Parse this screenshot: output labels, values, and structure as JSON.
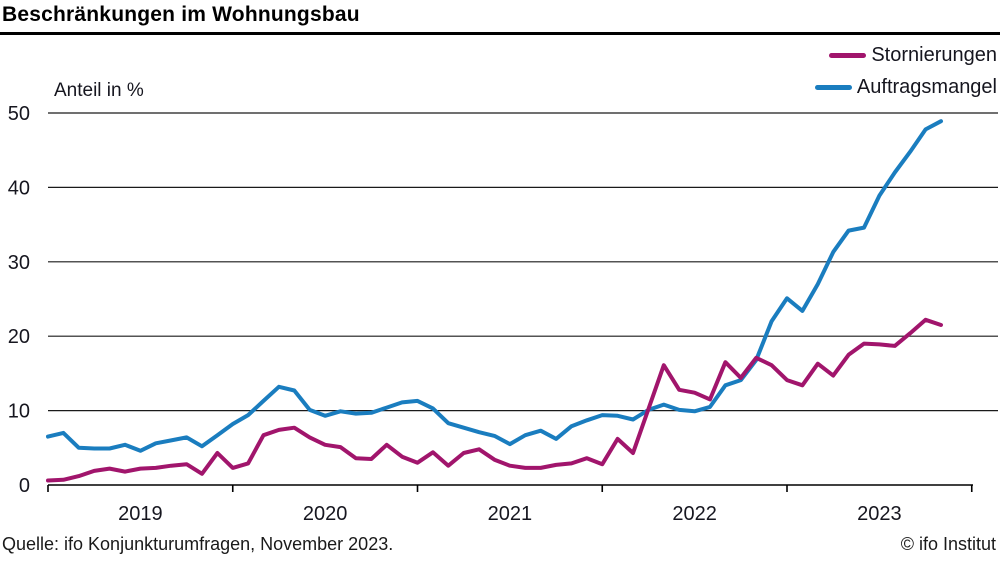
{
  "title": "Beschränkungen im Wohnungsbau",
  "footer": {
    "source": "Quelle: ifo Konjunkturumfragen, November 2023.",
    "copyright": "© ifo Institut"
  },
  "colors": {
    "stornierungen": "#a1156c",
    "auftragsmangel": "#1a7dbf",
    "text": "#16161f",
    "grid": "#1a1a1a"
  },
  "chart_data": {
    "type": "line",
    "title": "Beschränkungen im Wohnungsbau",
    "ylabel": "Anteil in %",
    "ylim": [
      0,
      50
    ],
    "yticks": [
      0,
      10,
      20,
      30,
      40,
      50
    ],
    "grid": true,
    "legend_position": "top-right",
    "xtick_year_labels": [
      "2019",
      "2020",
      "2021",
      "2022",
      "2023"
    ],
    "x": [
      "2019-01",
      "2019-02",
      "2019-03",
      "2019-04",
      "2019-05",
      "2019-06",
      "2019-07",
      "2019-08",
      "2019-09",
      "2019-10",
      "2019-11",
      "2019-12",
      "2020-01",
      "2020-02",
      "2020-03",
      "2020-04",
      "2020-05",
      "2020-06",
      "2020-07",
      "2020-08",
      "2020-09",
      "2020-10",
      "2020-11",
      "2020-12",
      "2021-01",
      "2021-02",
      "2021-03",
      "2021-04",
      "2021-05",
      "2021-06",
      "2021-07",
      "2021-08",
      "2021-09",
      "2021-10",
      "2021-11",
      "2021-12",
      "2022-01",
      "2022-02",
      "2022-03",
      "2022-04",
      "2022-05",
      "2022-06",
      "2022-07",
      "2022-08",
      "2022-09",
      "2022-10",
      "2022-11",
      "2022-12",
      "2023-01",
      "2023-02",
      "2023-03",
      "2023-04",
      "2023-05",
      "2023-06",
      "2023-07",
      "2023-08",
      "2023-09",
      "2023-10",
      "2023-11"
    ],
    "series": [
      {
        "name": "Stornierungen",
        "color": "#a1156c",
        "values": [
          0.6,
          0.7,
          1.2,
          1.9,
          2.2,
          1.8,
          2.2,
          2.3,
          2.6,
          2.8,
          1.5,
          4.3,
          2.3,
          2.9,
          6.7,
          7.4,
          7.7,
          6.4,
          5.4,
          5.1,
          3.6,
          3.5,
          5.4,
          3.8,
          3.0,
          4.4,
          2.6,
          4.3,
          4.8,
          3.4,
          2.6,
          2.3,
          2.3,
          2.7,
          2.9,
          3.6,
          2.8,
          6.2,
          4.3,
          10.2,
          16.1,
          12.8,
          12.4,
          11.5,
          16.5,
          14.4,
          17.1,
          16.1,
          14.1,
          13.4,
          16.3,
          14.7,
          17.5,
          19.0,
          18.9,
          18.7,
          20.4,
          22.2,
          21.5
        ]
      },
      {
        "name": "Auftragsmangel",
        "color": "#1a7dbf",
        "values": [
          6.5,
          7.0,
          5.0,
          4.9,
          4.9,
          5.4,
          4.6,
          5.6,
          6.0,
          6.4,
          5.2,
          6.7,
          8.2,
          9.4,
          11.3,
          13.2,
          12.7,
          10.1,
          9.3,
          9.9,
          9.6,
          9.7,
          10.4,
          11.1,
          11.3,
          10.3,
          8.3,
          7.7,
          7.1,
          6.6,
          5.5,
          6.7,
          7.3,
          6.2,
          7.9,
          8.7,
          9.4,
          9.3,
          8.8,
          10.1,
          10.8,
          10.1,
          9.9,
          10.5,
          13.4,
          14.1,
          16.8,
          22.0,
          25.1,
          23.4,
          27.0,
          31.3,
          34.2,
          34.6,
          38.9,
          42.0,
          44.8,
          47.8,
          48.9
        ]
      }
    ]
  }
}
